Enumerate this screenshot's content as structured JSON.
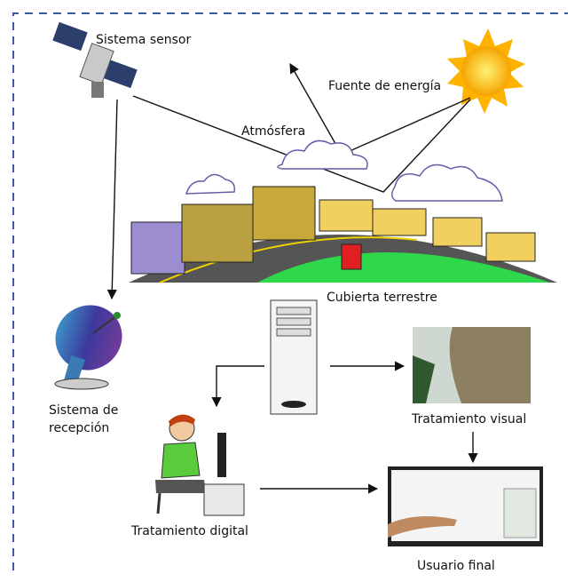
{
  "labels": {
    "sensor": "Sistema sensor",
    "source": "Fuente de energía",
    "atmosphere": "Atmósfera",
    "land_cover": "Cubierta terrestre",
    "reception": [
      "Sistema de",
      "recepción"
    ],
    "visual": "Tratamiento visual",
    "digital": "Tratamiento digital",
    "user": "Usuario final"
  }
}
